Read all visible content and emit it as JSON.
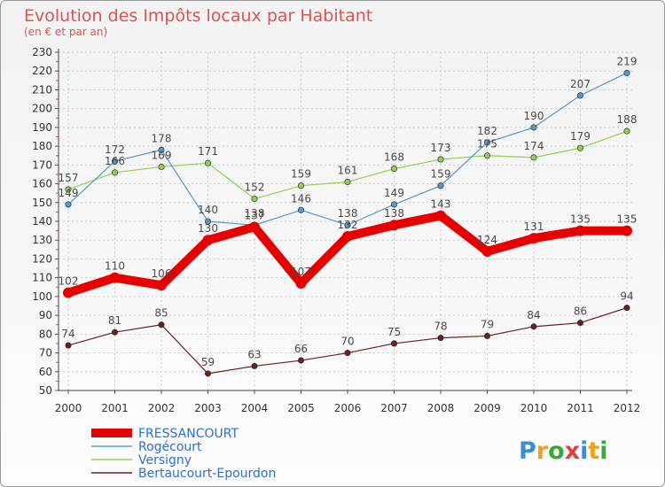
{
  "chart_data": {
    "type": "line",
    "title": "Evolution des Impôts locaux par Habitant",
    "subtitle": "(en € et par an)",
    "xlabel": "",
    "ylabel": "",
    "x": [
      "2000",
      "2001",
      "2002",
      "2003",
      "2004",
      "2005",
      "2006",
      "2007",
      "2008",
      "2009",
      "2010",
      "2011",
      "2012"
    ],
    "ylim": [
      50,
      230
    ],
    "yticks": [
      50,
      60,
      70,
      80,
      90,
      100,
      110,
      120,
      130,
      140,
      150,
      160,
      170,
      180,
      190,
      200,
      210,
      220,
      230
    ],
    "grid": true,
    "legend_position": "bottom-left",
    "series": [
      {
        "name": "FRESSANCOURT",
        "color": "#e60000",
        "values": [
          102,
          110,
          106,
          130,
          137,
          107,
          132,
          138,
          143,
          124,
          131,
          135,
          135
        ]
      },
      {
        "name": "Rogécourt",
        "color": "#5599cc",
        "values": [
          149,
          172,
          178,
          140,
          138,
          146,
          138,
          149,
          159,
          182,
          190,
          207,
          219
        ]
      },
      {
        "name": "Versigny",
        "color": "#8fd14f",
        "values": [
          157,
          166,
          169,
          171,
          152,
          159,
          161,
          168,
          173,
          175,
          174,
          179,
          188
        ]
      },
      {
        "name": "Bertaucourt-Epourdon",
        "color": "#6b1f1f",
        "values": [
          74,
          81,
          85,
          59,
          63,
          66,
          70,
          75,
          78,
          79,
          84,
          86,
          94
        ]
      }
    ]
  },
  "logo": {
    "letters": [
      "P",
      "r",
      "o",
      "x",
      "i",
      "t",
      "i"
    ],
    "colors": [
      "#3a8fd4",
      "#f0a020",
      "#3aa83a",
      "#e04040",
      "#3a8fd4",
      "#f0a020",
      "#3aa83a"
    ]
  }
}
